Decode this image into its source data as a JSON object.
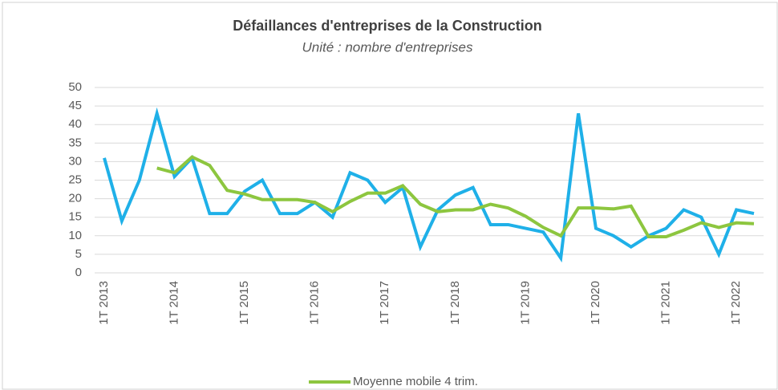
{
  "chart_data": {
    "type": "line",
    "title": "Défaillances d'entreprises de la Construction",
    "subtitle": "Unité : nombre d'entreprises",
    "categories": [
      "1T 2013",
      null,
      null,
      null,
      "1T 2014",
      null,
      null,
      null,
      "1T 2015",
      null,
      null,
      null,
      "1T 2016",
      null,
      null,
      null,
      "1T 2017",
      null,
      null,
      null,
      "1T 2018",
      null,
      null,
      null,
      "1T 2019",
      null,
      null,
      null,
      "1T 2020",
      null,
      null,
      null,
      "1T 2021",
      null,
      null,
      null,
      "1T 2022",
      null
    ],
    "series": [
      {
        "color": "#1fb0e8",
        "values": [
          31,
          14,
          25,
          43,
          26,
          31,
          16,
          16,
          22,
          25,
          16,
          16,
          19,
          15,
          27,
          25,
          19,
          23,
          7,
          17,
          21,
          23,
          13,
          13,
          12,
          11,
          4,
          43,
          12,
          10,
          7,
          10,
          12,
          17,
          15,
          5,
          17,
          16
        ]
      },
      {
        "name": "Moyenne mobile 4 trim.",
        "color": "#8dc63f",
        "values": [
          null,
          null,
          null,
          28.25,
          27,
          31.25,
          29,
          22.25,
          21.25,
          19.75,
          19.75,
          19.75,
          19,
          16.5,
          19.25,
          21.5,
          21.5,
          23.5,
          18.5,
          16.5,
          17,
          17,
          18.5,
          17.5,
          15.25,
          12.25,
          10,
          17.5,
          17.5,
          17.25,
          18,
          9.75,
          9.75,
          11.5,
          13.5,
          12.25,
          13.5,
          13.25
        ]
      }
    ],
    "ylim": [
      0,
      50
    ],
    "yticks": [
      0,
      5,
      10,
      15,
      20,
      25,
      30,
      35,
      40,
      45,
      50
    ],
    "grid": true
  }
}
